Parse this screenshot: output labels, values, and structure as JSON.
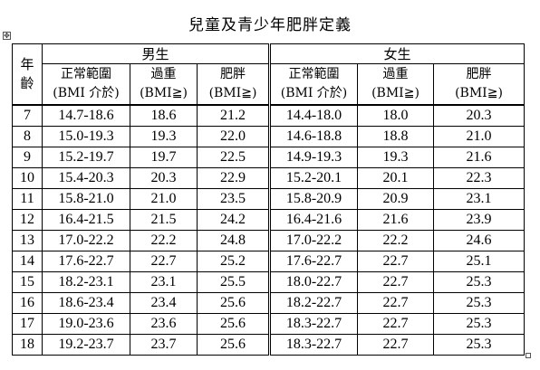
{
  "title": "兒童及青少年肥胖定義",
  "table_handle_glyph": "✥",
  "header": {
    "age_line1": "年",
    "age_line2": "齡",
    "male": "男生",
    "female": "女生",
    "male_cols": [
      {
        "line1": "正常範圍",
        "line2": "(BMI 介於)"
      },
      {
        "line1": "過重",
        "line2": "(BMI≧)"
      },
      {
        "line1": "肥胖",
        "line2": "(BMI≧)"
      }
    ],
    "female_cols": [
      {
        "line1": "正常範圍",
        "line2": "(BMI 介於)"
      },
      {
        "line1": "過重",
        "line2": "(BMI≧)"
      },
      {
        "line1": "肥胖",
        "line2": "(BMI≧)"
      }
    ]
  },
  "rows": [
    {
      "age": "7",
      "m_normal": "14.7-18.6",
      "m_over": "18.6",
      "m_obese": "21.2",
      "f_normal": "14.4-18.0",
      "f_over": "18.0",
      "f_obese": "20.3"
    },
    {
      "age": "8",
      "m_normal": "15.0-19.3",
      "m_over": "19.3",
      "m_obese": "22.0",
      "f_normal": "14.6-18.8",
      "f_over": "18.8",
      "f_obese": "21.0"
    },
    {
      "age": "9",
      "m_normal": "15.2-19.7",
      "m_over": "19.7",
      "m_obese": "22.5",
      "f_normal": "14.9-19.3",
      "f_over": "19.3",
      "f_obese": "21.6"
    },
    {
      "age": "10",
      "m_normal": "15.4-20.3",
      "m_over": "20.3",
      "m_obese": "22.9",
      "f_normal": "15.2-20.1",
      "f_over": "20.1",
      "f_obese": "22.3"
    },
    {
      "age": "11",
      "m_normal": "15.8-21.0",
      "m_over": "21.0",
      "m_obese": "23.5",
      "f_normal": "15.8-20.9",
      "f_over": "20.9",
      "f_obese": "23.1"
    },
    {
      "age": "12",
      "m_normal": "16.4-21.5",
      "m_over": "21.5",
      "m_obese": "24.2",
      "f_normal": "16.4-21.6",
      "f_over": "21.6",
      "f_obese": "23.9"
    },
    {
      "age": "13",
      "m_normal": "17.0-22.2",
      "m_over": "22.2",
      "m_obese": "24.8",
      "f_normal": "17.0-22.2",
      "f_over": "22.2",
      "f_obese": "24.6"
    },
    {
      "age": "14",
      "m_normal": "17.6-22.7",
      "m_over": "22.7",
      "m_obese": "25.2",
      "f_normal": "17.6-22.7",
      "f_over": "22.7",
      "f_obese": "25.1"
    },
    {
      "age": "15",
      "m_normal": "18.2-23.1",
      "m_over": "23.1",
      "m_obese": "25.5",
      "f_normal": "18.0-22.7",
      "f_over": "22.7",
      "f_obese": "25.3"
    },
    {
      "age": "16",
      "m_normal": "18.6-23.4",
      "m_over": "23.4",
      "m_obese": "25.6",
      "f_normal": "18.2-22.7",
      "f_over": "22.7",
      "f_obese": "25.3"
    },
    {
      "age": "17",
      "m_normal": "19.0-23.6",
      "m_over": "23.6",
      "m_obese": "25.6",
      "f_normal": "18.3-22.7",
      "f_over": "22.7",
      "f_obese": "25.3"
    },
    {
      "age": "18",
      "m_normal": "19.2-23.7",
      "m_over": "23.7",
      "m_obese": "25.6",
      "f_normal": "18.3-22.7",
      "f_over": "22.7",
      "f_obese": "25.3"
    }
  ]
}
